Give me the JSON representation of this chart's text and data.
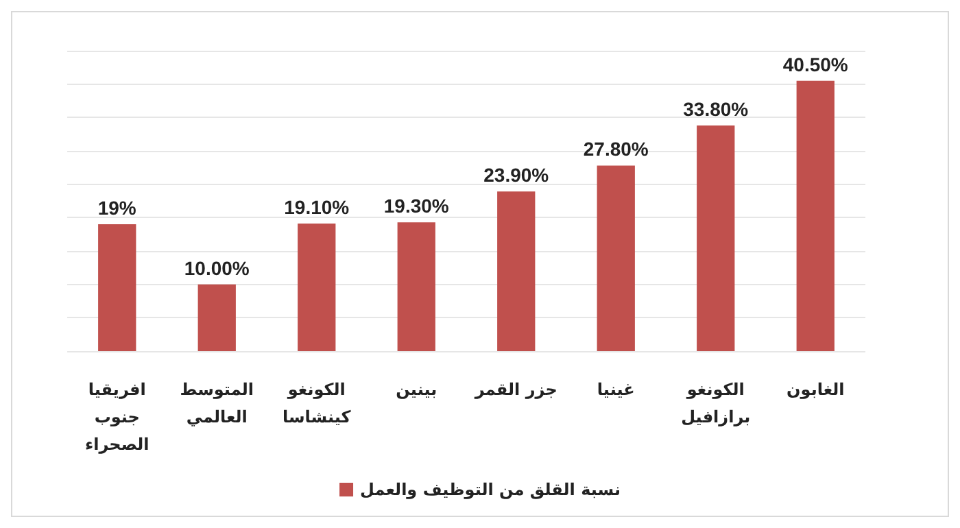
{
  "chart_data": {
    "type": "bar",
    "categories": [
      "افريقيا جنوب الصحراء",
      "المتوسط العالمي",
      "الكونغو كينشاسا",
      "بينين",
      "جزر القمر",
      "غينيا",
      "الكونغو برازافيل",
      "الغابون"
    ],
    "series": [
      {
        "name": "نسبة القلق من التوظيف والعمل",
        "color": "#c0504d",
        "values": [
          19,
          10,
          19.1,
          19.3,
          23.9,
          27.8,
          33.8,
          40.5
        ],
        "value_labels": [
          "19%",
          "10.00%",
          "19.10%",
          "19.30%",
          "23.90%",
          "27.80%",
          "33.80%",
          "40.50%"
        ]
      }
    ],
    "grid": "y",
    "legend": "bottom",
    "tick_labels": "x"
  }
}
